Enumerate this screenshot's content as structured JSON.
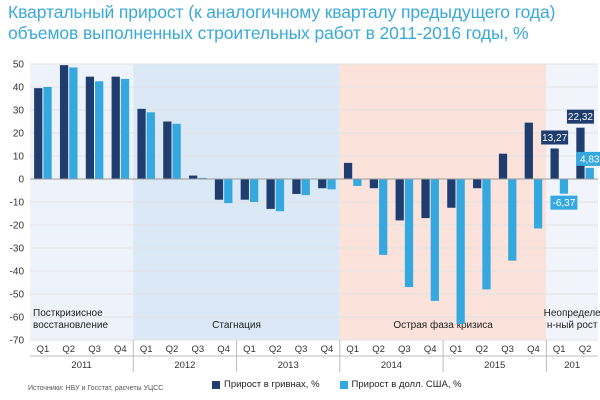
{
  "title": {
    "line1": "Квартальный прирост (к аналогичному кварталу предыдущего года)",
    "line2": "объемов выполненных строительных работ в 2011-2016 годы, %"
  },
  "source": "Источники: НБУ и Госстат, расчеты УЦСС",
  "colors": {
    "uah": "#1f3d6e",
    "usd": "#35a8e0",
    "phase_recovery": "#eef2fb",
    "phase_stagnation": "#dbe8f5",
    "phase_crisis": "#fbe3dc",
    "phase_uncertain": "#f2f4fb",
    "axis_text": "#333333",
    "grid": "#e2e2e2"
  },
  "chart_data": {
    "type": "bar",
    "title": "Квартальный прирост (к аналогичному кварталу предыдущего года) объемов выполненных строительных работ в 2011-2016 годы, %",
    "categories": [
      "Q1",
      "Q2",
      "Q3",
      "Q4",
      "Q1",
      "Q2",
      "Q3",
      "Q4",
      "Q1",
      "Q2",
      "Q3",
      "Q4",
      "Q1",
      "Q2",
      "Q3",
      "Q4",
      "Q1",
      "Q2",
      "Q3",
      "Q4",
      "Q1",
      "Q2"
    ],
    "years": [
      {
        "label": "2011",
        "start": 0,
        "end": 3
      },
      {
        "label": "2012",
        "start": 4,
        "end": 7
      },
      {
        "label": "2013",
        "start": 8,
        "end": 11
      },
      {
        "label": "2014",
        "start": 12,
        "end": 15
      },
      {
        "label": "2015",
        "start": 16,
        "end": 19
      },
      {
        "label": "201",
        "start": 20,
        "end": 21
      }
    ],
    "phases": [
      {
        "label": "Посткризисное восстановление",
        "start": 0,
        "end": 3,
        "color_key": "phase_recovery"
      },
      {
        "label": "Стагнация",
        "start": 4,
        "end": 11,
        "color_key": "phase_stagnation"
      },
      {
        "label": "Острая фаза кризиса",
        "start": 12,
        "end": 19,
        "color_key": "phase_crisis"
      },
      {
        "label": "Неопределе н-ный рост",
        "start": 20,
        "end": 21,
        "color_key": "phase_uncertain"
      }
    ],
    "series": [
      {
        "name": "Прирост в гривнах, %",
        "color_key": "uah",
        "values": [
          39.5,
          49.5,
          44.5,
          44.5,
          30.5,
          25,
          1.5,
          -9,
          -9,
          -13,
          -6.5,
          -4,
          7,
          -4,
          -18,
          -17,
          -12.5,
          -4,
          11,
          24.5,
          13.27,
          22.32
        ]
      },
      {
        "name": "Прирост в долл. США, %",
        "color_key": "usd",
        "values": [
          40,
          48.5,
          42.5,
          43.5,
          29,
          24,
          0.5,
          -10.5,
          -10,
          -14,
          -7,
          -4.5,
          -3,
          -33,
          -47,
          -53,
          -63,
          -48,
          -35.5,
          -21.5,
          -6.37,
          4.83
        ]
      }
    ],
    "data_labels": [
      {
        "series": 0,
        "index": 20,
        "text": "13,27"
      },
      {
        "series": 0,
        "index": 21,
        "text": "22,32"
      },
      {
        "series": 1,
        "index": 20,
        "text": "-6,37"
      },
      {
        "series": 1,
        "index": 21,
        "text": "4,83"
      }
    ],
    "yticks": [
      "50",
      "40",
      "30",
      "20",
      "10",
      "0",
      "-10",
      "-20",
      "-30",
      "-40",
      "-50",
      "-60",
      "-70"
    ],
    "ylim": [
      -70,
      50
    ],
    "grid": true,
    "legend_position": "bottom"
  }
}
